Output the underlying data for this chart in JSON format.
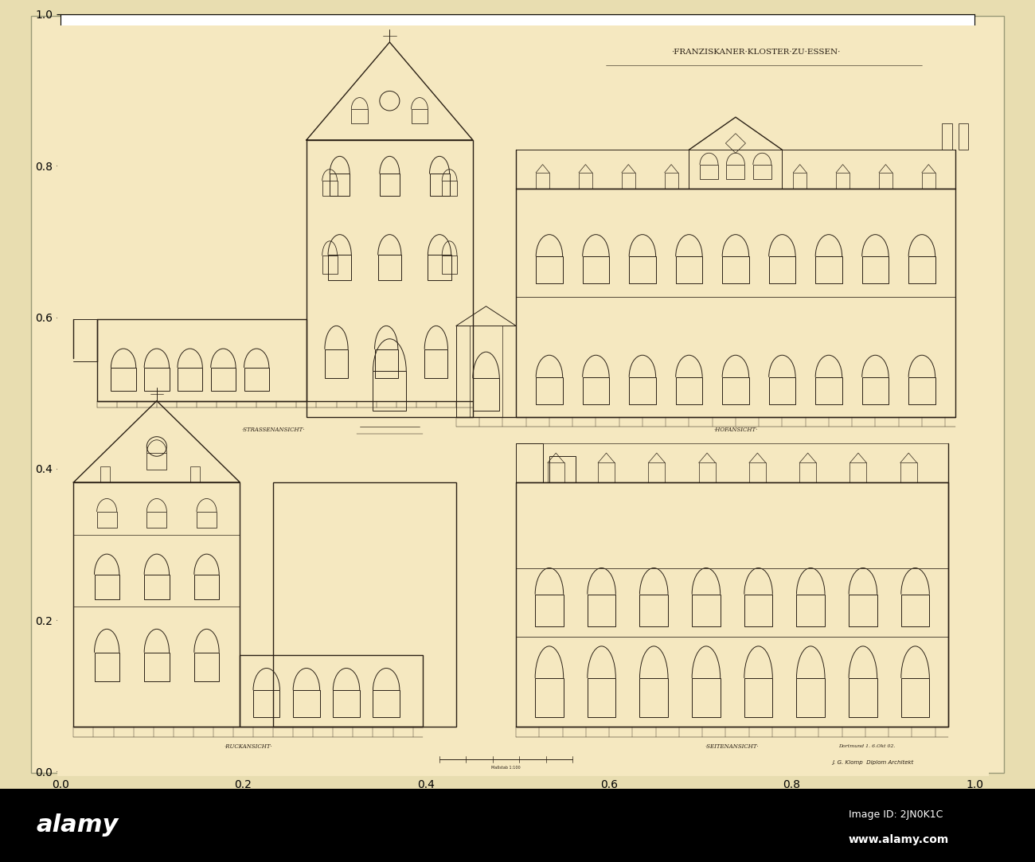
{
  "bg_color": "#f5e8c0",
  "paper_color": "#f2e5b5",
  "outer_bg_top": "#e8ddb0",
  "outer_bg_bottom": "#000000",
  "line_color": "#2a2015",
  "title": "·FRANZISKANER·KLOSTER·ZU·ESSEN·",
  "label_strassenansicht": "·STRASSENANSICHT·",
  "label_hofansicht": "·HOFANSICHT·",
  "label_rueckansicht": "·RUCKANSICHT·",
  "label_seitenansicht": "·SEITENANSICHT·",
  "alamy_logo": "alamy",
  "img_id": "Image ID: 2JN0K1C",
  "img_url": "www.alamy.com"
}
